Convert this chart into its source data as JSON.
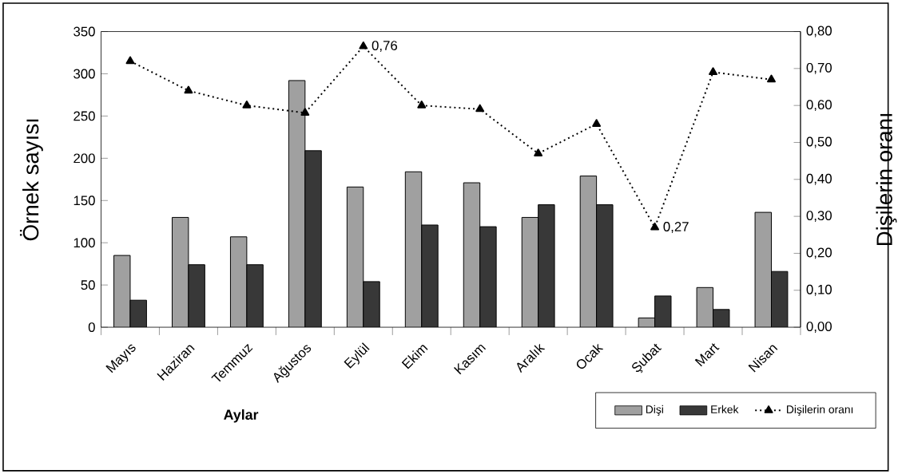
{
  "chart_data": {
    "type": "bar",
    "xlabel": "Aylar",
    "ylabel": "Örnek sayısı",
    "y2label": "Dişilerin oranı",
    "categories": [
      "Mayıs",
      "Haziran",
      "Temmuz",
      "Ağustos",
      "Eylül",
      "Ekim",
      "Kasım",
      "Aralık",
      "Ocak",
      "Şubat",
      "Mart",
      "Nisan"
    ],
    "series": [
      {
        "name": "Dişi",
        "color": "#a0a0a0",
        "values": [
          85,
          130,
          107,
          292,
          166,
          184,
          171,
          130,
          179,
          11,
          47,
          136
        ]
      },
      {
        "name": "Erkek",
        "color": "#383838",
        "values": [
          32,
          74,
          74,
          209,
          54,
          121,
          119,
          145,
          145,
          37,
          21,
          66
        ]
      },
      {
        "name": "Dişilerin oranı",
        "type": "line",
        "axis": "y2",
        "color": "#000000",
        "marker": "triangle",
        "line_style": "dotted",
        "values": [
          0.72,
          0.64,
          0.6,
          0.58,
          0.76,
          0.6,
          0.59,
          0.47,
          0.55,
          0.27,
          0.69,
          0.67
        ],
        "value_labels": [
          null,
          null,
          null,
          null,
          "0,76",
          null,
          null,
          null,
          null,
          "0,27",
          null,
          null
        ]
      }
    ],
    "ylim": [
      0,
      350
    ],
    "yticks": [
      0,
      50,
      100,
      150,
      200,
      250,
      300,
      350
    ],
    "y2lim": [
      0,
      0.8
    ],
    "y2ticks": [
      {
        "value": 0,
        "label": "0,00"
      },
      {
        "value": 0.1,
        "label": "0,10"
      },
      {
        "value": 0.2,
        "label": "0,20"
      },
      {
        "value": 0.3,
        "label": "0,30"
      },
      {
        "value": 0.4,
        "label": "0,40"
      },
      {
        "value": 0.5,
        "label": "0,50"
      },
      {
        "value": 0.6,
        "label": "0,60"
      },
      {
        "value": 0.7,
        "label": "0,70"
      },
      {
        "value": 0.8,
        "label": "0,80"
      }
    ],
    "grid": false,
    "legend": "bottom right"
  }
}
